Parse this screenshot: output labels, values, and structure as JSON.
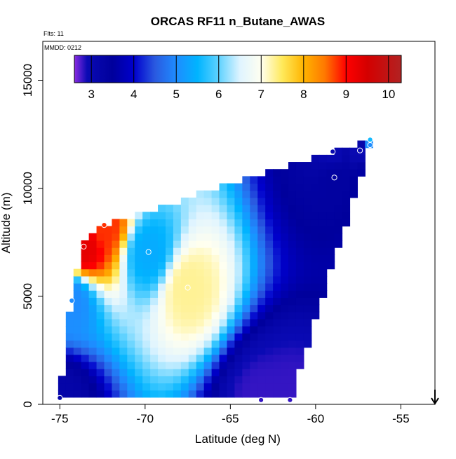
{
  "chart_data": {
    "type": "heatmap",
    "title": "ORCAS RF11 n_Butane_AWAS",
    "annotations": {
      "flights": "Flts: 11",
      "date": "MMDD: 0212"
    },
    "xlabel": "Latitude (deg N)",
    "ylabel": "Altitude (m)",
    "xlim": [
      -76,
      -53
    ],
    "ylim": [
      0,
      16800
    ],
    "x_ticks": [
      -75,
      -70,
      -65,
      -60,
      -55
    ],
    "y_ticks": [
      0,
      5000,
      10000,
      15000
    ],
    "colorbar": {
      "range": [
        2.6,
        10.3
      ],
      "ticks": [
        3,
        4,
        5,
        6,
        7,
        8,
        9,
        10
      ],
      "stops": [
        {
          "v": 2.6,
          "color": "#8a2be2"
        },
        {
          "v": 2.9,
          "color": "#0a0ab4"
        },
        {
          "v": 3.5,
          "color": "#00009c"
        },
        {
          "v": 4.0,
          "color": "#0000cd"
        },
        {
          "v": 4.5,
          "color": "#2a5ae0"
        },
        {
          "v": 5.0,
          "color": "#1e8cff"
        },
        {
          "v": 5.5,
          "color": "#00b4ff"
        },
        {
          "v": 6.0,
          "color": "#5fd2ff"
        },
        {
          "v": 6.5,
          "color": "#dff4ff"
        },
        {
          "v": 7.0,
          "color": "#fffff0"
        },
        {
          "v": 7.5,
          "color": "#ffe95a"
        },
        {
          "v": 8.0,
          "color": "#ffb400"
        },
        {
          "v": 8.5,
          "color": "#ff7800"
        },
        {
          "v": 9.0,
          "color": "#ff0000"
        },
        {
          "v": 9.5,
          "color": "#d40000"
        },
        {
          "v": 10.3,
          "color": "#b22222"
        }
      ]
    },
    "observations": [
      {
        "lat": -75.0,
        "alt": 300,
        "value": 3.2
      },
      {
        "lat": -74.3,
        "alt": 4800,
        "value": 5.0
      },
      {
        "lat": -73.6,
        "alt": 7300,
        "value": 9.3
      },
      {
        "lat": -72.4,
        "alt": 8300,
        "value": 8.8
      },
      {
        "lat": -69.8,
        "alt": 7050,
        "value": 5.4
      },
      {
        "lat": -67.5,
        "alt": 5400,
        "value": 7.3
      },
      {
        "lat": -63.2,
        "alt": 200,
        "value": 2.8
      },
      {
        "lat": -61.5,
        "alt": 200,
        "value": 2.8
      },
      {
        "lat": -59.0,
        "alt": 11700,
        "value": 3.0
      },
      {
        "lat": -58.9,
        "alt": 10500,
        "value": 3.4
      },
      {
        "lat": -57.4,
        "alt": 11750,
        "value": 2.9
      },
      {
        "lat": -56.8,
        "alt": 12000,
        "value": 5.0
      },
      {
        "lat": -56.8,
        "alt": 12250,
        "value": 5.6
      }
    ],
    "arrow_latitude": -53.0
  }
}
